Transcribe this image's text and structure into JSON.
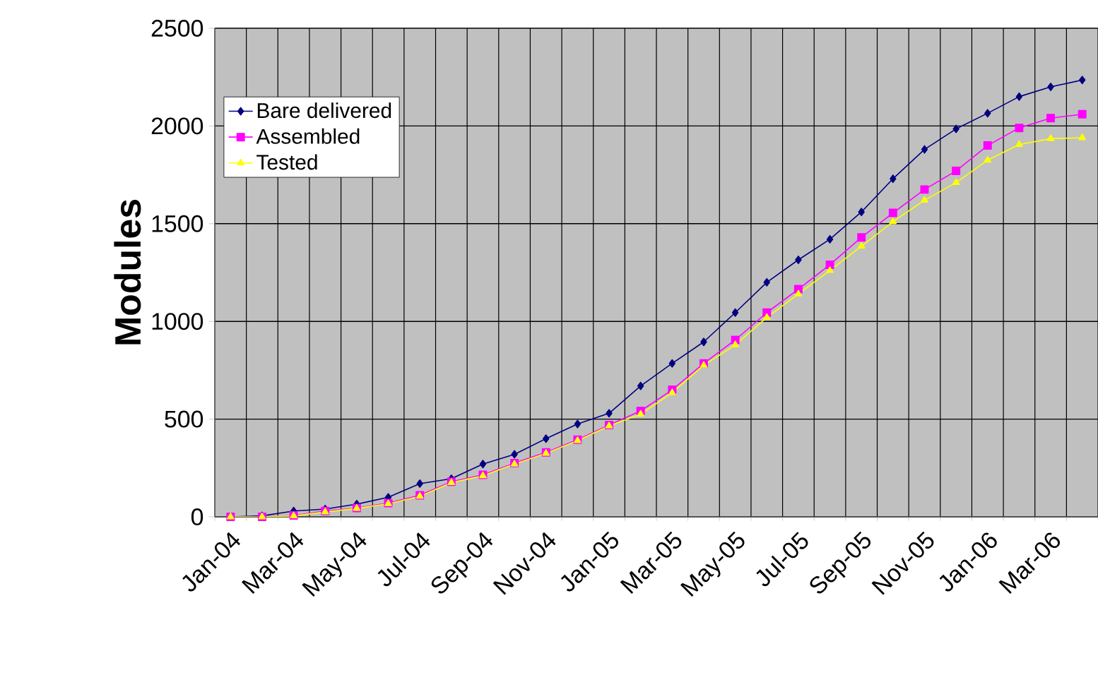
{
  "chart_data": {
    "type": "line",
    "ylabel": "Modules",
    "categories": [
      "Jan-04",
      null,
      "Mar-04",
      null,
      "May-04",
      null,
      "Jul-04",
      null,
      "Sep-04",
      null,
      "Nov-04",
      null,
      "Jan-05",
      null,
      "Mar-05",
      null,
      "May-05",
      null,
      "Jul-05",
      null,
      "Sep-05",
      null,
      "Nov-05",
      null,
      "Jan-06",
      null,
      "Mar-06",
      null
    ],
    "series": [
      {
        "name": "Bare delivered",
        "color": "#000080",
        "marker": "diamond",
        "values": [
          0,
          5,
          30,
          40,
          65,
          100,
          170,
          195,
          270,
          320,
          400,
          475,
          530,
          670,
          785,
          895,
          1045,
          1200,
          1315,
          1420,
          1560,
          1730,
          1880,
          1985,
          2065,
          2150,
          2200,
          2235
        ]
      },
      {
        "name": "Assembled",
        "color": "#ff00ff",
        "marker": "square",
        "values": [
          0,
          0,
          7,
          30,
          45,
          70,
          110,
          180,
          215,
          275,
          330,
          395,
          470,
          542,
          650,
          785,
          905,
          1045,
          1165,
          1290,
          1430,
          1555,
          1675,
          1770,
          1900,
          1990,
          2040,
          2060
        ]
      },
      {
        "name": "Tested",
        "color": "#ffff00",
        "marker": "triangle",
        "values": [
          0,
          0,
          5,
          25,
          43,
          67,
          105,
          175,
          210,
          270,
          325,
          390,
          465,
          525,
          635,
          775,
          880,
          1020,
          1140,
          1260,
          1385,
          1510,
          1620,
          1710,
          1825,
          1905,
          1935,
          1940
        ]
      }
    ],
    "ylim": [
      0,
      2500
    ],
    "yticks": [
      0,
      500,
      1000,
      1500,
      2000,
      2500
    ],
    "grid": true,
    "legend": "top left",
    "line_style": "solid"
  }
}
